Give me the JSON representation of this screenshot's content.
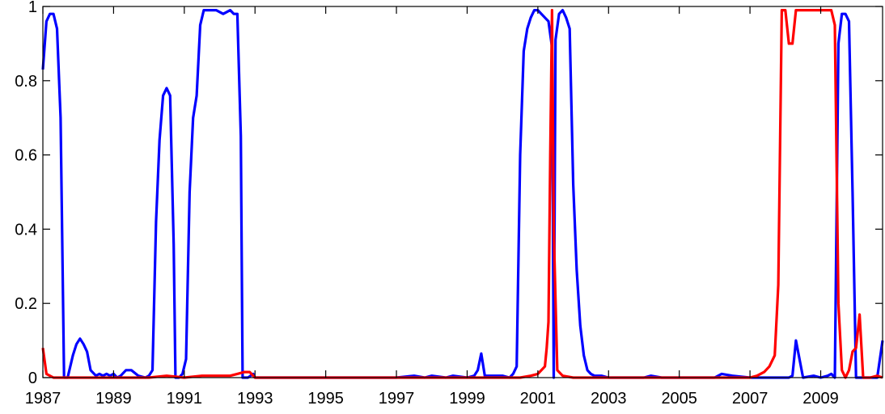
{
  "chart_data": {
    "type": "line",
    "title": "",
    "xlabel": "",
    "ylabel": "",
    "xlim": [
      1987,
      2010.75
    ],
    "ylim": [
      0,
      1
    ],
    "grid": false,
    "legend": "none",
    "x_ticks": [
      1987,
      1989,
      1991,
      1993,
      1995,
      1997,
      1999,
      2001,
      2003,
      2005,
      2007,
      2009
    ],
    "x_tick_labels": [
      "1987",
      "1989",
      "1991",
      "1993",
      "1995",
      "1997",
      "1999",
      "2001",
      "2003",
      "2005",
      "2007",
      "2009"
    ],
    "y_ticks": [
      0,
      0.2,
      0.4,
      0.6,
      0.8,
      1
    ],
    "y_tick_labels": [
      "0",
      "0.2",
      "0.4",
      "0.6",
      "0.8",
      "1"
    ],
    "series": [
      {
        "color": "#0000ff",
        "x": [
          1987.0,
          1987.1,
          1987.2,
          1987.3,
          1987.4,
          1987.5,
          1987.6,
          1987.7,
          1987.75,
          1987.85,
          1987.95,
          1988.05,
          1988.15,
          1988.25,
          1988.35,
          1988.5,
          1988.6,
          1988.7,
          1988.8,
          1988.9,
          1989.0,
          1989.1,
          1989.2,
          1989.35,
          1989.5,
          1989.7,
          1989.9,
          1990.0,
          1990.1,
          1990.2,
          1990.3,
          1990.4,
          1990.5,
          1990.6,
          1990.7,
          1990.75,
          1990.85,
          1990.95,
          1991.05,
          1991.15,
          1991.25,
          1991.35,
          1991.45,
          1991.55,
          1991.7,
          1991.9,
          1992.1,
          1992.3,
          1992.4,
          1992.5,
          1992.6,
          1992.65,
          1992.8,
          1992.95,
          1993.0,
          1993.5,
          1994.0,
          1994.5,
          1995.0,
          1995.5,
          1996.0,
          1996.5,
          1997.0,
          1997.5,
          1997.8,
          1998.0,
          1998.4,
          1998.6,
          1999.0,
          1999.2,
          1999.3,
          1999.4,
          1999.5,
          2000.0,
          2000.2,
          2000.3,
          2000.4,
          2000.5,
          2000.6,
          2000.7,
          2000.8,
          2000.9,
          2001.0,
          2001.1,
          2001.2,
          2001.3,
          2001.4,
          2001.45,
          2001.5,
          2001.6,
          2001.7,
          2001.8,
          2001.9,
          2002.0,
          2002.1,
          2002.2,
          2002.3,
          2002.4,
          2002.5,
          2002.6,
          2002.8,
          2003.0,
          2003.5,
          2004.0,
          2004.2,
          2004.5,
          2005.0,
          2005.5,
          2006.0,
          2006.2,
          2006.5,
          2007.0,
          2007.5,
          2008.0,
          2008.1,
          2008.2,
          2008.3,
          2008.5,
          2008.8,
          2009.0,
          2009.2,
          2009.3,
          2009.4,
          2009.5,
          2009.6,
          2009.7,
          2009.8,
          2009.9,
          2010.0,
          2010.3,
          2010.5,
          2010.6,
          2010.75
        ],
        "y": [
          0.83,
          0.96,
          0.98,
          0.98,
          0.94,
          0.7,
          0.0,
          0.0,
          0.02,
          0.06,
          0.09,
          0.105,
          0.09,
          0.07,
          0.02,
          0.005,
          0.01,
          0.005,
          0.01,
          0.005,
          0.01,
          0.0,
          0.005,
          0.02,
          0.02,
          0.005,
          0.0,
          0.005,
          0.02,
          0.42,
          0.64,
          0.76,
          0.78,
          0.76,
          0.36,
          0.0,
          0.0,
          0.01,
          0.05,
          0.5,
          0.7,
          0.76,
          0.95,
          0.99,
          0.99,
          0.99,
          0.98,
          0.99,
          0.98,
          0.98,
          0.65,
          0.0,
          0.0,
          0.01,
          0.0,
          0.0,
          0.0,
          0.0,
          0.0,
          0.0,
          0.0,
          0.0,
          0.0,
          0.005,
          0.0,
          0.005,
          0.0,
          0.005,
          0.0,
          0.005,
          0.02,
          0.065,
          0.005,
          0.005,
          0.0,
          0.01,
          0.03,
          0.6,
          0.88,
          0.94,
          0.97,
          0.99,
          0.99,
          0.98,
          0.97,
          0.96,
          0.89,
          0.0,
          0.91,
          0.98,
          0.99,
          0.97,
          0.94,
          0.52,
          0.29,
          0.14,
          0.06,
          0.02,
          0.01,
          0.005,
          0.005,
          0.0,
          0.0,
          0.0,
          0.005,
          0.0,
          0.0,
          0.0,
          0.0,
          0.01,
          0.005,
          0.0,
          0.0,
          0.0,
          0.0,
          0.005,
          0.1,
          0.0,
          0.005,
          0.0,
          0.005,
          0.01,
          0.0,
          0.9,
          0.98,
          0.98,
          0.96,
          0.5,
          0.0,
          0.0,
          0.0,
          0.0,
          0.1
        ]
      },
      {
        "color": "#ff0000",
        "x": [
          1987.0,
          1987.1,
          1987.3,
          1988.0,
          1989.0,
          1990.0,
          1990.5,
          1991.0,
          1991.5,
          1992.0,
          1992.3,
          1992.5,
          1992.7,
          1992.85,
          1993.0,
          1994.0,
          1995.0,
          1996.0,
          1997.0,
          1998.0,
          1999.0,
          2000.0,
          2000.5,
          2000.8,
          2001.0,
          2001.2,
          2001.25,
          2001.3,
          2001.35,
          2001.4,
          2001.45,
          2001.55,
          2001.7,
          2002.0,
          2003.0,
          2004.0,
          2005.0,
          2006.0,
          2007.0,
          2007.2,
          2007.4,
          2007.55,
          2007.7,
          2007.8,
          2007.9,
          2008.0,
          2008.1,
          2008.2,
          2008.3,
          2008.35,
          2008.5,
          2008.7,
          2009.0,
          2009.2,
          2009.3,
          2009.4,
          2009.5,
          2009.6,
          2009.7,
          2009.8,
          2009.9,
          2010.0,
          2010.1,
          2010.2,
          2010.4,
          2010.6,
          2010.75
        ],
        "y": [
          0.08,
          0.01,
          0.0,
          0.0,
          0.0,
          0.0,
          0.005,
          0.0,
          0.005,
          0.005,
          0.005,
          0.01,
          0.015,
          0.015,
          0.0,
          0.0,
          0.0,
          0.0,
          0.0,
          0.0,
          0.0,
          0.0,
          0.0,
          0.005,
          0.01,
          0.03,
          0.08,
          0.15,
          0.6,
          0.99,
          0.4,
          0.02,
          0.005,
          0.0,
          0.0,
          0.0,
          0.0,
          0.0,
          0.0,
          0.005,
          0.015,
          0.03,
          0.06,
          0.25,
          0.99,
          0.99,
          0.9,
          0.9,
          0.99,
          0.99,
          0.99,
          0.99,
          0.99,
          0.99,
          0.99,
          0.95,
          0.2,
          0.02,
          0.0,
          0.02,
          0.07,
          0.08,
          0.17,
          0.0,
          0.0,
          0.005,
          0.0
        ]
      }
    ]
  }
}
